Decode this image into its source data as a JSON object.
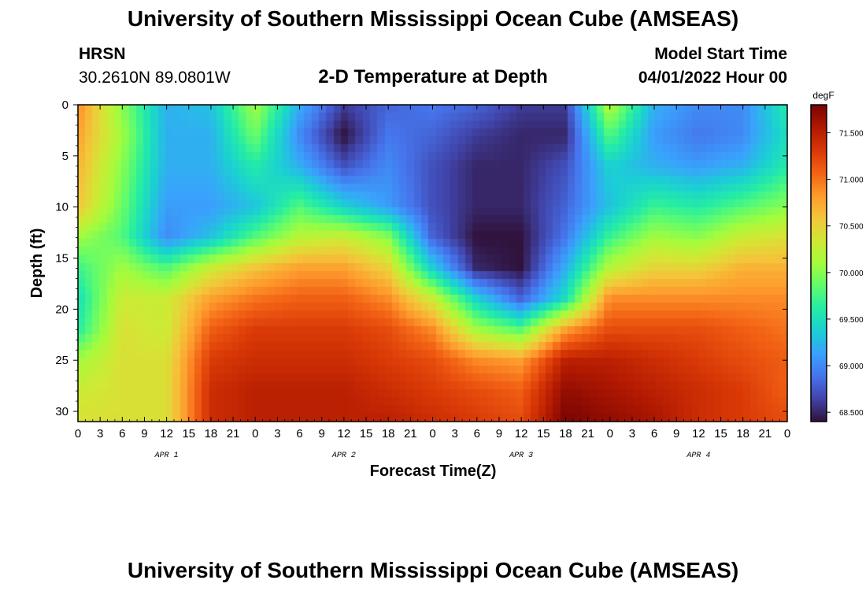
{
  "header": {
    "title_top": "University of Southern Mississippi Ocean Cube (AMSEAS)",
    "title_bottom": "University of Southern Mississippi Ocean Cube (AMSEAS)",
    "station": "HRSN",
    "coords": "30.2610N  89.0801W",
    "plot_title": "2-D Temperature at Depth",
    "start_label": "Model Start Time",
    "start_value": "04/01/2022 Hour 00"
  },
  "chart_data": {
    "type": "heatmap",
    "title": "2-D Temperature at Depth",
    "xlabel": "Forecast Time(Z)",
    "ylabel": "Depth (ft)",
    "x_hours": [
      0,
      3,
      6,
      9,
      12,
      15,
      18,
      21,
      24,
      27,
      30,
      33,
      36,
      39,
      42,
      45,
      48,
      51,
      54,
      57,
      60,
      63,
      66,
      69,
      72,
      75,
      78,
      81,
      84,
      87,
      90,
      93,
      96
    ],
    "x_tick_labels": [
      "0",
      "3",
      "6",
      "9",
      "12",
      "15",
      "18",
      "21",
      "0",
      "3",
      "6",
      "9",
      "12",
      "15",
      "18",
      "21",
      "0",
      "3",
      "6",
      "9",
      "12",
      "15",
      "18",
      "21",
      "0",
      "3",
      "6",
      "9",
      "12",
      "15",
      "18",
      "21",
      "0"
    ],
    "day_labels": [
      {
        "label": "APR 1",
        "hour": 12
      },
      {
        "label": "APR 2",
        "hour": 36
      },
      {
        "label": "APR 3",
        "hour": 60
      },
      {
        "label": "APR 4",
        "hour": 84
      }
    ],
    "y_ticks": [
      0,
      5,
      10,
      15,
      20,
      25,
      30
    ],
    "y_tick_labels": [
      "0",
      "5",
      "10",
      "15",
      "20",
      "25",
      "30"
    ],
    "xlim": [
      0,
      96
    ],
    "ylim": [
      0,
      31
    ],
    "y_inverted": true,
    "depths_ft": [
      0,
      3,
      6,
      10,
      13,
      16,
      19,
      22,
      25,
      28,
      31
    ],
    "temperature_degF": [
      [
        70.9,
        70.0,
        69.2,
        69.3,
        70.1,
        69.2,
        68.6,
        68.8,
        68.9,
        68.8,
        68.6,
        68.6,
        70.2,
        69.2,
        69.0,
        69.0,
        69.6
      ],
      [
        70.8,
        70.1,
        69.2,
        69.2,
        69.9,
        69.0,
        68.4,
        68.9,
        68.8,
        68.6,
        68.5,
        68.5,
        69.8,
        69.1,
        68.9,
        69.0,
        69.5
      ],
      [
        70.7,
        70.0,
        69.2,
        69.2,
        69.6,
        69.2,
        68.7,
        69.0,
        68.7,
        68.5,
        68.5,
        68.7,
        69.4,
        69.2,
        69.1,
        69.2,
        69.6
      ],
      [
        70.6,
        69.9,
        69.1,
        69.1,
        69.3,
        69.8,
        69.4,
        69.1,
        68.7,
        68.5,
        68.5,
        68.8,
        69.3,
        69.7,
        69.6,
        69.8,
        70.0
      ],
      [
        70.1,
        69.8,
        69.0,
        69.3,
        69.8,
        70.2,
        70.3,
        70.0,
        68.8,
        68.4,
        68.4,
        68.9,
        69.7,
        70.1,
        70.0,
        70.3,
        70.4
      ],
      [
        69.7,
        70.1,
        69.8,
        70.3,
        70.6,
        70.8,
        70.8,
        70.5,
        69.4,
        68.5,
        68.4,
        69.2,
        70.2,
        70.5,
        70.5,
        70.7,
        70.7
      ],
      [
        69.5,
        70.3,
        70.3,
        70.8,
        71.0,
        71.1,
        71.1,
        70.9,
        70.3,
        69.4,
        68.8,
        69.5,
        70.9,
        70.9,
        70.9,
        70.9,
        70.9
      ],
      [
        69.6,
        70.4,
        70.3,
        71.1,
        71.3,
        71.3,
        71.3,
        71.2,
        70.9,
        70.1,
        69.8,
        70.8,
        71.2,
        71.2,
        71.2,
        71.1,
        71.0
      ],
      [
        70.1,
        70.4,
        70.4,
        71.3,
        71.4,
        71.4,
        71.4,
        71.3,
        71.2,
        70.9,
        70.8,
        71.5,
        71.5,
        71.4,
        71.3,
        71.2,
        71.1
      ],
      [
        70.3,
        70.4,
        70.4,
        71.4,
        71.5,
        71.5,
        71.5,
        71.4,
        71.3,
        71.2,
        71.1,
        71.7,
        71.6,
        71.5,
        71.4,
        71.3,
        71.1
      ],
      [
        70.4,
        70.4,
        70.4,
        71.4,
        71.5,
        71.5,
        71.5,
        71.5,
        71.4,
        71.3,
        71.2,
        71.8,
        71.7,
        71.6,
        71.4,
        71.3,
        71.2
      ]
    ],
    "colorbar": {
      "unit": "degF",
      "min": 68.4,
      "max": 71.8,
      "ticks": [
        68.5,
        69.0,
        69.5,
        70.0,
        70.5,
        71.0,
        71.5
      ],
      "tick_labels": [
        "68.500",
        "69.000",
        "69.500",
        "70.000",
        "70.500",
        "71.000",
        "71.500"
      ],
      "colormap": [
        "#30123b",
        "#4145ab",
        "#4675ed",
        "#39a2fc",
        "#1bcfd4",
        "#24eca6",
        "#61fc6c",
        "#a4fc3c",
        "#d1e834",
        "#f3c63a",
        "#fe9b2d",
        "#f36315",
        "#d93806",
        "#b11901",
        "#7a0403"
      ]
    }
  }
}
